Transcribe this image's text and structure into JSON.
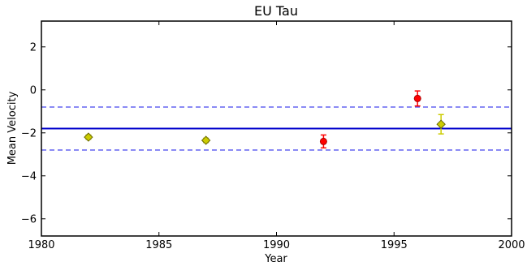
{
  "chart_data": {
    "type": "scatter",
    "title": "EU Tau",
    "xlabel": "Year",
    "ylabel": "Mean Velocity",
    "xlim": [
      1980,
      2000
    ],
    "ylim": [
      -6.8,
      3.2
    ],
    "xticks": [
      1980,
      1985,
      1990,
      1995,
      2000
    ],
    "yticks": [
      -6,
      -4,
      -2,
      0,
      2
    ],
    "xtick_labels": [
      "1980",
      "1985",
      "1990",
      "1995",
      "2000"
    ],
    "ytick_labels": [
      "−6",
      "−4",
      "−2",
      "0",
      "2"
    ],
    "grid": false,
    "series": [
      {
        "marker": "diamond",
        "color": "#cccc00",
        "edge": "#666600",
        "points": [
          {
            "x": 1982,
            "y": -2.2,
            "err": 0.1
          },
          {
            "x": 1987,
            "y": -2.35,
            "err": 0.1
          },
          {
            "x": 1997,
            "y": -1.6,
            "err": 0.45
          }
        ]
      },
      {
        "marker": "circle",
        "color": "#ff0000",
        "edge": "#aa0000",
        "points": [
          {
            "x": 1992,
            "y": -2.4,
            "err": 0.3
          },
          {
            "x": 1996,
            "y": -0.4,
            "err": 0.35
          }
        ]
      }
    ],
    "hlines": [
      {
        "y": -1.8,
        "style": "solid",
        "color": "#0000cc"
      },
      {
        "y": -0.8,
        "style": "dashed",
        "color": "#4444ee"
      },
      {
        "y": -2.8,
        "style": "dashed",
        "color": "#4444ee"
      }
    ]
  }
}
